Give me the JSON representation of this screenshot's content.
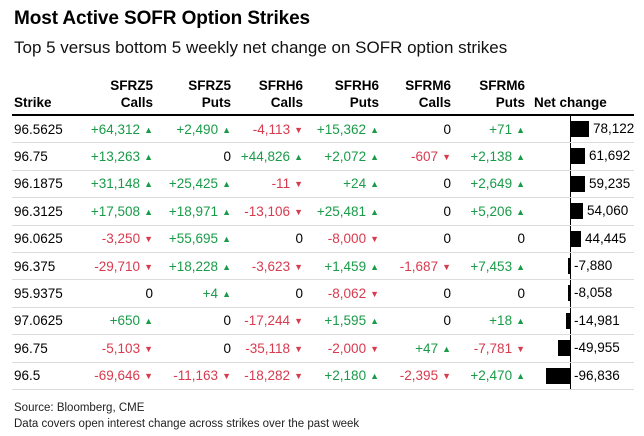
{
  "title": "Most Active SOFR Option Strikes",
  "subtitle": "Top 5 versus bottom 5 weekly net change on SOFR option strikes",
  "colors": {
    "positive": "#1a9b49",
    "negative": "#d83a4e",
    "bar": "#000000"
  },
  "columns": [
    {
      "line1": "",
      "line2": "Strike"
    },
    {
      "line1": "SFRZ5",
      "line2": "Calls"
    },
    {
      "line1": "SFRZ5",
      "line2": "Puts"
    },
    {
      "line1": "SFRH6",
      "line2": "Calls"
    },
    {
      "line1": "SFRH6",
      "line2": "Puts"
    },
    {
      "line1": "SFRM6",
      "line2": "Calls"
    },
    {
      "line1": "SFRM6",
      "line2": "Puts"
    },
    {
      "line1": "",
      "line2": "Net change"
    }
  ],
  "rows": [
    {
      "strike": "96.5625",
      "cells": [
        "+64,312",
        "+2,490",
        "-4,113",
        "+15,362",
        "0",
        "+71"
      ],
      "net": 78122,
      "net_label": "78,122"
    },
    {
      "strike": "96.75",
      "cells": [
        "+13,263",
        "0",
        "+44,826",
        "+2,072",
        "-607",
        "+2,138"
      ],
      "net": 61692,
      "net_label": "61,692"
    },
    {
      "strike": "96.1875",
      "cells": [
        "+31,148",
        "+25,425",
        "-11",
        "+24",
        "0",
        "+2,649"
      ],
      "net": 59235,
      "net_label": "59,235"
    },
    {
      "strike": "96.3125",
      "cells": [
        "+17,508",
        "+18,971",
        "-13,106",
        "+25,481",
        "0",
        "+5,206"
      ],
      "net": 54060,
      "net_label": "54,060"
    },
    {
      "strike": "96.0625",
      "cells": [
        "-3,250",
        "+55,695",
        "0",
        "-8,000",
        "0",
        "0"
      ],
      "net": 44445,
      "net_label": "44,445"
    },
    {
      "strike": "96.375",
      "cells": [
        "-29,710",
        "+18,228",
        "-3,623",
        "+1,459",
        "-1,687",
        "+7,453"
      ],
      "net": -7880,
      "net_label": "-7,880"
    },
    {
      "strike": "95.9375",
      "cells": [
        "0",
        "+4",
        "0",
        "-8,062",
        "0",
        "0"
      ],
      "net": -8058,
      "net_label": "-8,058"
    },
    {
      "strike": "97.0625",
      "cells": [
        "+650",
        "0",
        "-17,244",
        "+1,595",
        "0",
        "+18"
      ],
      "net": -14981,
      "net_label": "-14,981"
    },
    {
      "strike": "96.75",
      "cells": [
        "-5,103",
        "0",
        "-35,118",
        "-2,000",
        "+47",
        "-7,781"
      ],
      "net": -49955,
      "net_label": "-49,955"
    },
    {
      "strike": "96.5",
      "cells": [
        "-69,646",
        "-11,163",
        "-18,282",
        "+2,180",
        "-2,395",
        "+2,470"
      ],
      "net": -96836,
      "net_label": "-96,836"
    }
  ],
  "footer": {
    "source": "Source: Bloomberg, CME",
    "note": "Data covers open interest change across strikes over the past week"
  }
}
